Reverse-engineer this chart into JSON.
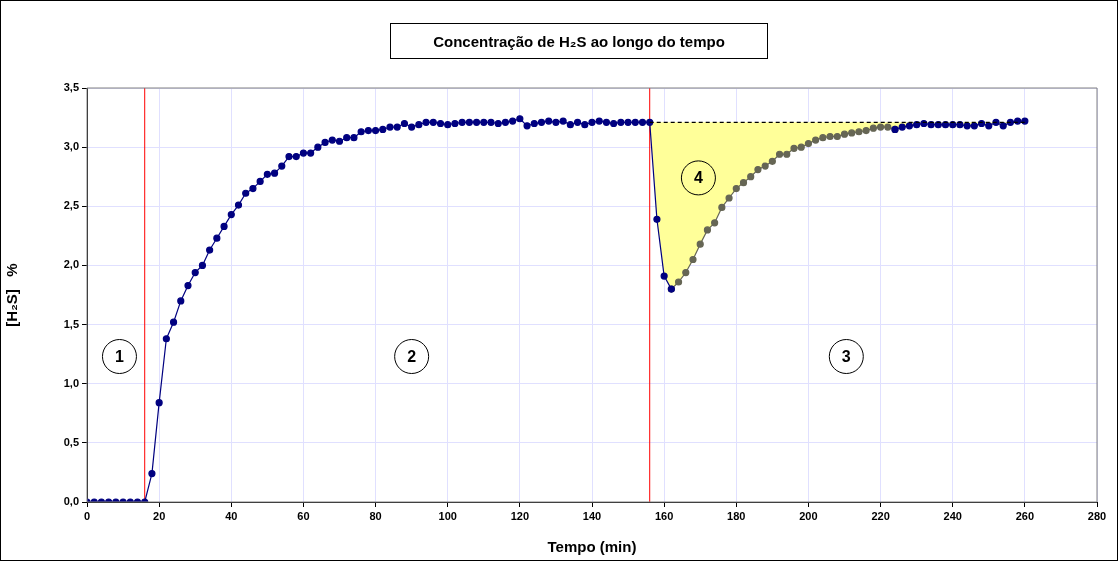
{
  "chart_data": {
    "type": "line",
    "title": "Concentração de H₂S ao longo do tempo",
    "xlabel": "Tempo (min)",
    "ylabel": "[H₂S]   %",
    "xlim": [
      0,
      280
    ],
    "xticks": [
      0,
      20,
      40,
      60,
      80,
      100,
      120,
      140,
      160,
      180,
      200,
      220,
      240,
      260,
      280
    ],
    "ylim": [
      0,
      3.5
    ],
    "yticks": [
      {
        "value": 0,
        "label": "0,0"
      },
      {
        "value": 0.5,
        "label": "0,5"
      },
      {
        "value": 1,
        "label": "1,0"
      },
      {
        "value": 1.5,
        "label": "1,5"
      },
      {
        "value": 2,
        "label": "2,0"
      },
      {
        "value": 2.5,
        "label": "2,5"
      },
      {
        "value": 3,
        "label": "3,0"
      },
      {
        "value": 3.5,
        "label": "3,5"
      }
    ],
    "grid": true,
    "legend": false,
    "marker": "circle",
    "series": [
      {
        "color": "#666655",
        "x": [
          162,
          164,
          166,
          168,
          170,
          172,
          174,
          176,
          178,
          180,
          182,
          184,
          186,
          188,
          190,
          192,
          194,
          196,
          198,
          200,
          202,
          204,
          206,
          208,
          210,
          212,
          214,
          216,
          218,
          220,
          222,
          224
        ],
        "values": [
          1.8,
          1.86,
          1.94,
          2.05,
          2.18,
          2.3,
          2.36,
          2.49,
          2.57,
          2.65,
          2.7,
          2.75,
          2.81,
          2.84,
          2.88,
          2.94,
          2.94,
          2.99,
          3.0,
          3.03,
          3.06,
          3.08,
          3.09,
          3.09,
          3.11,
          3.12,
          3.13,
          3.14,
          3.16,
          3.17,
          3.17,
          3.15
        ]
      },
      {
        "color": "#000080",
        "x": [
          0,
          2,
          4,
          6,
          8,
          10,
          12,
          14,
          16,
          18,
          20,
          22,
          24,
          26,
          28,
          30,
          32,
          34,
          36,
          38,
          40,
          42,
          44,
          46,
          48,
          50,
          52,
          54,
          56,
          58,
          60,
          62,
          64,
          66,
          68,
          70,
          72,
          74,
          76,
          78,
          80,
          82,
          84,
          86,
          88,
          90,
          92,
          94,
          96,
          98,
          100,
          102,
          104,
          106,
          108,
          110,
          112,
          114,
          116,
          118,
          120,
          122,
          124,
          126,
          128,
          130,
          132,
          134,
          136,
          138,
          140,
          142,
          144,
          146,
          148,
          150,
          152,
          154,
          156,
          158,
          160,
          162,
          164,
          224,
          226,
          228,
          230,
          232,
          234,
          236,
          238,
          240,
          242,
          244,
          246,
          248,
          250,
          252,
          254,
          256,
          258,
          260
        ],
        "values": [
          0,
          0,
          0,
          0,
          0,
          0,
          0,
          0,
          0,
          0.24,
          0.84,
          1.38,
          1.52,
          1.7,
          1.83,
          1.94,
          2.0,
          2.13,
          2.23,
          2.33,
          2.43,
          2.51,
          2.61,
          2.65,
          2.71,
          2.77,
          2.78,
          2.84,
          2.92,
          2.92,
          2.95,
          2.95,
          3.0,
          3.04,
          3.06,
          3.05,
          3.08,
          3.08,
          3.13,
          3.14,
          3.14,
          3.15,
          3.17,
          3.17,
          3.2,
          3.17,
          3.19,
          3.21,
          3.21,
          3.2,
          3.19,
          3.2,
          3.21,
          3.21,
          3.21,
          3.21,
          3.21,
          3.2,
          3.21,
          3.22,
          3.24,
          3.18,
          3.2,
          3.21,
          3.22,
          3.21,
          3.22,
          3.19,
          3.21,
          3.19,
          3.21,
          3.22,
          3.21,
          3.2,
          3.21,
          3.21,
          3.21,
          3.21,
          3.21,
          2.39,
          1.91,
          1.8,
          null,
          3.15,
          3.17,
          3.18,
          3.19,
          3.2,
          3.19,
          3.19,
          3.19,
          3.19,
          3.19,
          3.18,
          3.18,
          3.2,
          3.18,
          3.21,
          3.18,
          3.21,
          3.22,
          3.22
        ]
      },
      {
        "color": "#000000",
        "line_style": "dashed",
        "marker": "none",
        "x": [
          156,
          158,
          160,
          162,
          164,
          166,
          168,
          170,
          172,
          174,
          176,
          178,
          180,
          182,
          184,
          186,
          188,
          190,
          192,
          194,
          196,
          198,
          200,
          202,
          204,
          206,
          208,
          210,
          212,
          214,
          216,
          218,
          220,
          222,
          224,
          226,
          228,
          230,
          232,
          234,
          236,
          238,
          240,
          242,
          244,
          246,
          248,
          250,
          252,
          254,
          256,
          258,
          260
        ],
        "values": [
          3.21,
          3.21,
          3.21,
          3.21,
          3.21,
          3.21,
          3.21,
          3.21,
          3.21,
          3.21,
          3.21,
          3.21,
          3.21,
          3.21,
          3.21,
          3.21,
          3.21,
          3.21,
          3.21,
          3.21,
          3.21,
          3.21,
          3.21,
          3.21,
          3.21,
          3.21,
          3.21,
          3.21,
          3.21,
          3.21,
          3.21,
          3.21,
          3.21,
          3.21,
          3.21,
          3.21,
          3.21,
          3.21,
          3.21,
          3.21,
          3.21,
          3.21,
          3.21,
          3.21,
          3.21,
          3.21,
          3.21,
          3.21,
          3.21,
          3.21,
          3.21,
          3.21,
          3.21
        ],
        "upper": [
          3.21,
          3.21,
          3.21,
          3.21,
          3.21,
          3.21,
          3.21,
          3.21,
          3.21,
          3.21,
          3.21,
          3.21,
          3.21,
          3.21,
          3.21,
          3.21,
          3.21,
          3.21,
          3.21,
          3.21,
          3.21,
          3.21,
          3.21,
          3.21,
          3.21,
          3.21,
          3.21,
          3.21,
          3.21,
          3.21,
          3.21,
          3.21,
          3.21,
          3.21,
          3.21,
          3.21,
          3.21,
          3.21,
          3.21,
          3.21,
          3.21,
          3.21,
          3.21,
          3.21,
          3.21,
          3.21,
          3.21,
          3.21,
          3.21,
          3.21,
          3.21,
          3.21,
          3.21
        ],
        "lower": [
          3.21,
          2.39,
          1.91,
          1.8,
          1.86,
          1.94,
          2.05,
          2.18,
          2.3,
          2.36,
          2.49,
          2.57,
          2.65,
          2.7,
          2.75,
          2.81,
          2.84,
          2.88,
          2.94,
          2.94,
          2.99,
          3.0,
          3.03,
          3.06,
          3.08,
          3.09,
          3.09,
          3.11,
          3.12,
          3.13,
          3.14,
          3.16,
          3.17,
          3.17,
          3.15,
          3.17,
          3.18,
          3.19,
          3.2,
          3.19,
          3.19,
          3.19,
          3.19,
          3.19,
          3.18,
          3.18,
          3.2,
          3.18,
          3.21,
          3.18,
          3.21,
          3.22,
          3.22
        ]
      }
    ],
    "ref_lines": [
      {
        "axis": "x",
        "value": 16,
        "color": "#ff0000"
      },
      {
        "axis": "x",
        "value": 156,
        "color": "#ff0000"
      }
    ],
    "annotations": [
      {
        "text": "1",
        "x": 9,
        "y": 1.23
      },
      {
        "text": "2",
        "x": 90,
        "y": 1.23
      },
      {
        "text": "3",
        "x": 210.5,
        "y": 1.23
      },
      {
        "text": "4",
        "x": 169.5,
        "y": 2.74
      }
    ]
  }
}
